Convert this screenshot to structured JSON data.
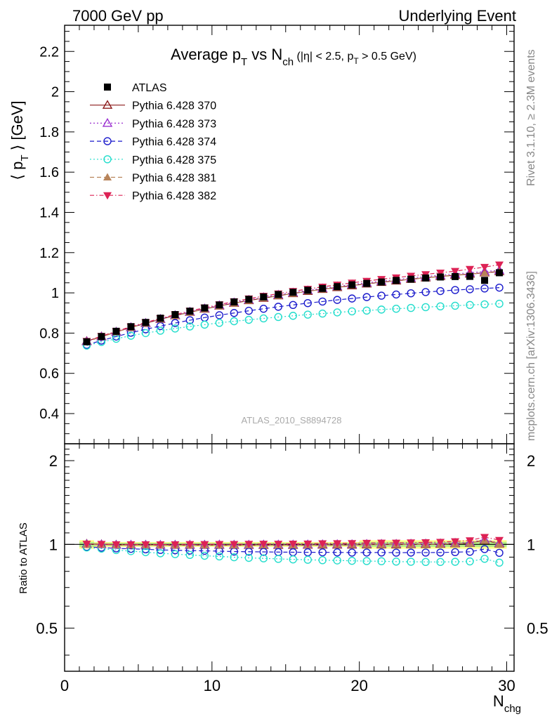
{
  "header": {
    "left": "7000 GeV pp",
    "right": "Underlying Event"
  },
  "title": {
    "main": "Average p",
    "main_sub": "T",
    "vs": " vs N",
    "vs_sub": "ch",
    "cut_a": " (|η| < 2.5, p",
    "cut_sub": "T",
    "cut_b": " > 0.5 GeV)"
  },
  "side_labels": {
    "rivet": "Rivet 3.1.10, ≥ 2.3M events",
    "mcplots": "mcplots.cern.ch [arXiv:1306.3436]"
  },
  "watermark": "ATLAS_2010_S8894728",
  "colors": {
    "ATLAS": "#000000",
    "p370": "#8b1a1a",
    "p373": "#9b30d0",
    "p374": "#1a1acc",
    "p375": "#22ddcc",
    "p381": "#b8845a",
    "p382": "#dd2255",
    "band_green": "#b5f08a",
    "band_yellow": "#ffff88"
  },
  "chart_data": {
    "type": "scatter",
    "x_label_main": "N",
    "x_label_sub": "chg",
    "y_label": "⟨ p",
    "y_label_sub": "T",
    "y_label_end": " ⟩ [GeV]",
    "ratio_label": "Ratio to ATLAS",
    "xlim": [
      0,
      30.5
    ],
    "ylim": [
      0.25,
      2.33
    ],
    "ratio_ylim": [
      0.35,
      2.3
    ],
    "ratio_log_scale": true,
    "x_ticks": [
      "0",
      "10",
      "20",
      "30"
    ],
    "y_ticks": [
      "0.4",
      "0.6",
      "0.8",
      "1",
      "1.2",
      "1.4",
      "1.6",
      "1.8",
      "2",
      "2.2"
    ],
    "ratio_ticks": [
      "0.5",
      "1",
      "2"
    ],
    "x": [
      1.5,
      2.5,
      3.5,
      4.5,
      5.5,
      6.5,
      7.5,
      8.5,
      9.5,
      10.5,
      11.5,
      12.5,
      13.5,
      14.5,
      15.5,
      16.5,
      17.5,
      18.5,
      19.5,
      20.5,
      21.5,
      22.5,
      23.5,
      24.5,
      25.5,
      26.5,
      27.5,
      28.5,
      29.5
    ],
    "series": [
      {
        "name": "ATLAS",
        "key": "ATLAS",
        "marker": "square",
        "line": "none",
        "values": [
          0.757,
          0.783,
          0.809,
          0.832,
          0.853,
          0.874,
          0.892,
          0.909,
          0.925,
          0.94,
          0.955,
          0.968,
          0.98,
          0.992,
          1.003,
          1.013,
          1.022,
          1.031,
          1.04,
          1.047,
          1.054,
          1.062,
          1.068,
          1.074,
          1.079,
          1.081,
          1.082,
          1.062,
          1.1
        ]
      },
      {
        "name": "Pythia 6.428 370",
        "key": "p370",
        "marker": "triangle-open",
        "line": "solid",
        "values": [
          0.76,
          0.783,
          0.806,
          0.828,
          0.849,
          0.869,
          0.887,
          0.904,
          0.92,
          0.935,
          0.949,
          0.962,
          0.974,
          0.986,
          0.997,
          1.008,
          1.018,
          1.027,
          1.036,
          1.045,
          1.053,
          1.06,
          1.068,
          1.075,
          1.082,
          1.088,
          1.094,
          1.1,
          1.106
        ]
      },
      {
        "name": "Pythia 6.428 373",
        "key": "p373",
        "marker": "triangle-open",
        "line": "dotted",
        "values": [
          0.758,
          0.782,
          0.806,
          0.829,
          0.85,
          0.87,
          0.889,
          0.906,
          0.922,
          0.938,
          0.952,
          0.965,
          0.978,
          0.99,
          1.001,
          1.012,
          1.022,
          1.032,
          1.041,
          1.05,
          1.058,
          1.066,
          1.074,
          1.081,
          1.088,
          1.094,
          1.1,
          1.106,
          1.112
        ]
      },
      {
        "name": "Pythia 6.428 374",
        "key": "p374",
        "marker": "circle-open",
        "line": "dashed",
        "values": [
          0.742,
          0.763,
          0.783,
          0.802,
          0.819,
          0.835,
          0.85,
          0.864,
          0.877,
          0.889,
          0.9,
          0.911,
          0.921,
          0.931,
          0.94,
          0.949,
          0.957,
          0.965,
          0.972,
          0.979,
          0.986,
          0.992,
          0.998,
          1.004,
          1.009,
          1.014,
          1.018,
          1.022,
          1.026
        ]
      },
      {
        "name": "Pythia 6.428 375",
        "key": "p375",
        "marker": "circle-open",
        "line": "dotted",
        "values": [
          0.738,
          0.756,
          0.772,
          0.787,
          0.8,
          0.812,
          0.823,
          0.833,
          0.842,
          0.851,
          0.859,
          0.866,
          0.873,
          0.88,
          0.886,
          0.892,
          0.897,
          0.903,
          0.908,
          0.912,
          0.917,
          0.921,
          0.925,
          0.929,
          0.933,
          0.936,
          0.94,
          0.943,
          0.946
        ]
      },
      {
        "name": "Pythia 6.428 381",
        "key": "p381",
        "marker": "triangle-filled",
        "line": "dashed",
        "values": [
          0.757,
          0.781,
          0.805,
          0.827,
          0.848,
          0.868,
          0.886,
          0.903,
          0.919,
          0.934,
          0.948,
          0.962,
          0.974,
          0.986,
          0.997,
          1.008,
          1.018,
          1.028,
          1.037,
          1.045,
          1.053,
          1.061,
          1.068,
          1.075,
          1.081,
          1.087,
          1.093,
          1.099,
          1.105
        ]
      },
      {
        "name": "Pythia 6.428 382",
        "key": "p382",
        "marker": "triangle-down-filled",
        "line": "dashdot",
        "values": [
          0.76,
          0.785,
          0.809,
          0.832,
          0.853,
          0.873,
          0.892,
          0.91,
          0.926,
          0.942,
          0.957,
          0.971,
          0.984,
          0.996,
          1.008,
          1.019,
          1.03,
          1.04,
          1.05,
          1.059,
          1.068,
          1.076,
          1.084,
          1.092,
          1.1,
          1.108,
          1.118,
          1.128,
          1.14
        ]
      }
    ]
  }
}
